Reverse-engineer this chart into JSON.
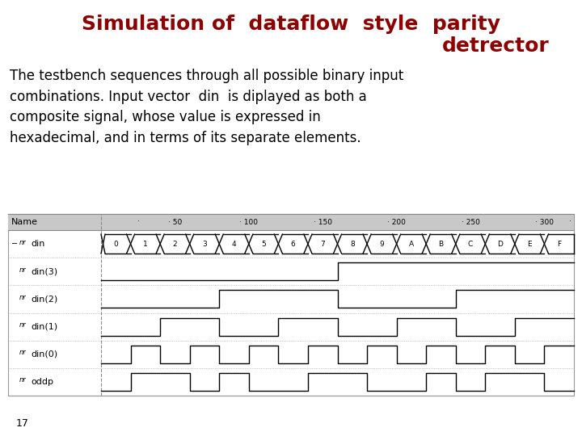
{
  "title_line1": "Simulation of  dataflow  style  parity",
  "title_line2": "detrector",
  "title_color": "#8B0000",
  "body_text": "The testbench sequences through all possible binary input\ncombinations. Input vector  din  is diplayed as both a\ncomposite signal, whose value is expressed in\nhexadecimal, and in terms of its separate elements.",
  "page_number": "17",
  "background_color": "#FFFFFF",
  "signal_names": [
    "din",
    "din(3)",
    "din(2)",
    "din(1)",
    "din(0)",
    "oddp"
  ],
  "time_vals": [
    50,
    100,
    150,
    200,
    250,
    300
  ],
  "din_labels": [
    "0",
    "1",
    "2",
    "3",
    "4",
    "5",
    "6",
    "7",
    "8",
    "9",
    "A",
    "B",
    "C",
    "D",
    "E",
    "F"
  ],
  "num_steps": 16,
  "din3": [
    0,
    0,
    0,
    0,
    0,
    0,
    0,
    0,
    1,
    1,
    1,
    1,
    1,
    1,
    1,
    1
  ],
  "din2": [
    0,
    0,
    0,
    0,
    1,
    1,
    1,
    1,
    0,
    0,
    0,
    0,
    1,
    1,
    1,
    1
  ],
  "din1": [
    0,
    0,
    1,
    1,
    0,
    0,
    1,
    1,
    0,
    0,
    1,
    1,
    0,
    0,
    1,
    1
  ],
  "din0": [
    0,
    1,
    0,
    1,
    0,
    1,
    0,
    1,
    0,
    1,
    0,
    1,
    0,
    1,
    0,
    1
  ],
  "oddp": [
    0,
    1,
    1,
    0,
    1,
    0,
    0,
    1,
    1,
    0,
    0,
    1,
    0,
    1,
    1,
    0
  ]
}
